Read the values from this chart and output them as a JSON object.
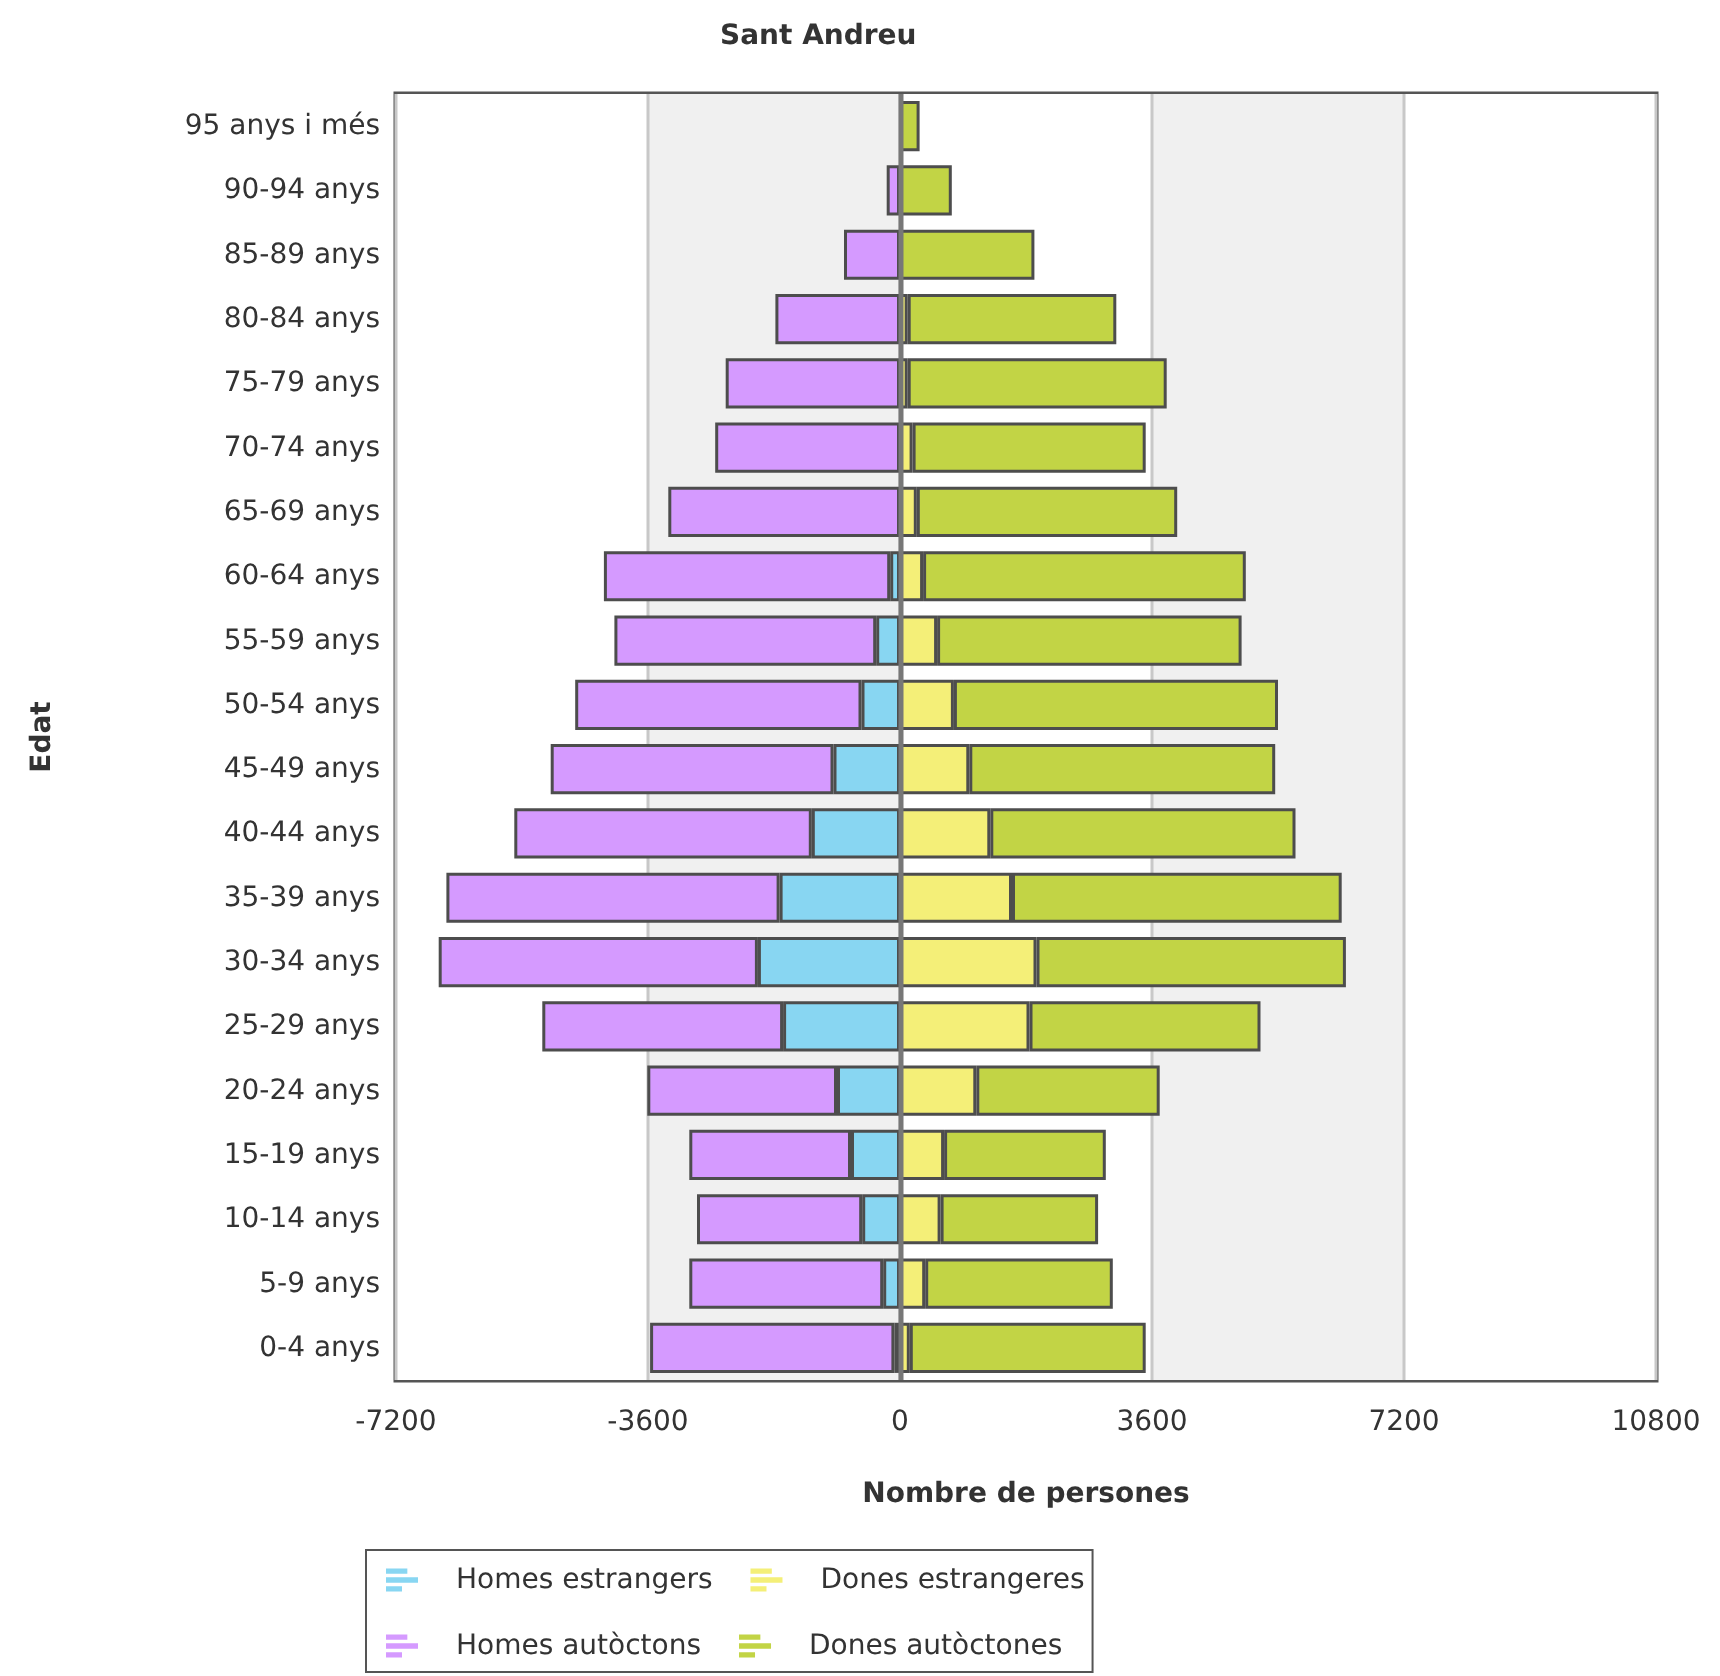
{
  "chart_data": {
    "type": "bar",
    "orientation": "horizontal",
    "stacked": true,
    "title": "Sant Andreu",
    "xlabel": "Nombre de persones",
    "ylabel": "Edat",
    "categories": [
      "95 anys i més",
      "90-94 anys",
      "85-89 anys",
      "80-84 anys",
      "75-79 anys",
      "70-74 anys",
      "65-69 anys",
      "60-64 anys",
      "55-59 anys",
      "50-54 anys",
      "45-49 anys",
      "40-44 anys",
      "35-39 anys",
      "30-34 anys",
      "25-29 anys",
      "20-24 anys",
      "15-19 anys",
      "10-14 anys",
      "5-9 anys",
      "0-4 anys"
    ],
    "series": [
      {
        "name": "Homes estrangers",
        "color": "#88d6f2",
        "values": [
          null,
          null,
          null,
          null,
          null,
          null,
          null,
          -140,
          -340,
          -550,
          -950,
          -1260,
          -1720,
          -2030,
          -1670,
          -900,
          -700,
          -540,
          -240,
          -80
        ]
      },
      {
        "name": "Dones estrangeres",
        "color": "#f4ef78",
        "values": [
          null,
          null,
          null,
          110,
          110,
          180,
          240,
          330,
          530,
          770,
          990,
          1290,
          1600,
          1950,
          1850,
          1090,
          630,
          580,
          360,
          140
        ]
      },
      {
        "name": "Homes autòctons",
        "color": "#d59aff",
        "values": [
          null,
          -190,
          -800,
          -1780,
          -2490,
          -2640,
          -3310,
          -4090,
          -3740,
          -4090,
          -4040,
          -4250,
          -4760,
          -4560,
          -3440,
          -2710,
          -2310,
          -2360,
          -2770,
          -3490
        ]
      },
      {
        "name": "Dones autòctones",
        "color": "#c2d445",
        "values": [
          280,
          740,
          1920,
          2980,
          3700,
          3330,
          3720,
          4610,
          4350,
          4630,
          4370,
          4360,
          4710,
          4420,
          3300,
          2620,
          2310,
          2250,
          2680,
          3370
        ]
      }
    ],
    "xlim": [
      -7200,
      10800
    ],
    "xticks": [
      -7200,
      -3600,
      0,
      3600,
      7200,
      10800
    ],
    "grid": "x",
    "legend": "bottom",
    "ref_lines": [
      {
        "axis": "x",
        "value": 0,
        "color": "#777777"
      }
    ]
  }
}
